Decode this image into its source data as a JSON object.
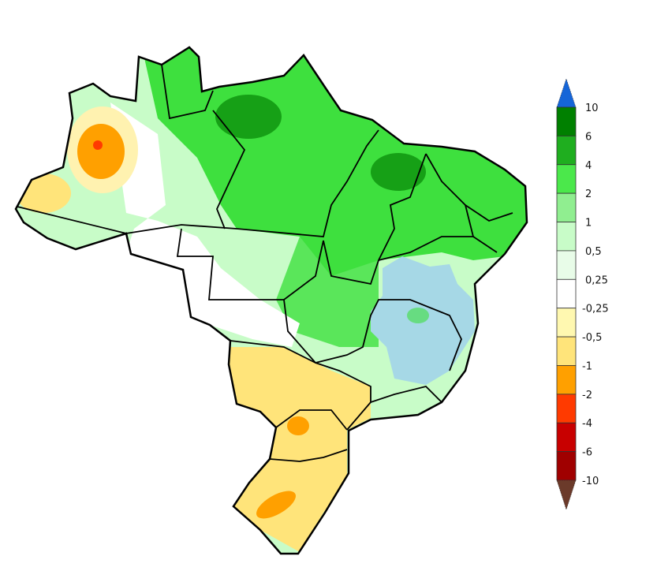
{
  "map": {
    "region": "Brazil",
    "colors": {
      "outline": "#000000",
      "base": "#c8fcc8",
      "green": "#3ee03e",
      "dark_green": "#16a016",
      "light_blue": "#a6d8e6",
      "yellow": "#ffe47a",
      "light_yellow": "#fff2b0",
      "orange": "#ffa000",
      "red": "#ff3a00"
    }
  },
  "legend": {
    "top_arrow_color": "#1565d8",
    "bottom_arrow_color": "#6b3a2a",
    "labels": [
      "10",
      "6",
      "4",
      "2",
      "1",
      "0,5",
      "0,25",
      "-0,25",
      "-0,5",
      "-1",
      "-2",
      "-4",
      "-6",
      "-10"
    ],
    "colors": [
      "#008000",
      "#1fae1f",
      "#4be84b",
      "#90ee90",
      "#c8fcc8",
      "#e8fce8",
      "#ffffff",
      "#fff8b0",
      "#ffe47a",
      "#ffa000",
      "#ff3a00",
      "#c80000",
      "#a00000"
    ]
  }
}
